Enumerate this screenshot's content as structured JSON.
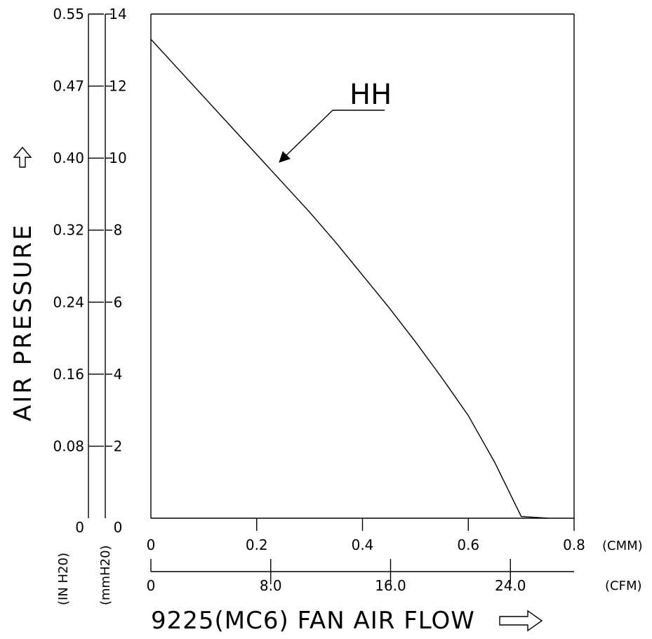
{
  "chart_data": {
    "type": "line",
    "title": "",
    "ylabel": "AIR PRESSURE",
    "xlabel": "9225(MC6) FAN AIR FLOW",
    "y_axis_mmH2O": {
      "unit": "(mmH20)",
      "range": [
        0,
        14
      ],
      "ticks": [
        "0",
        "2",
        "4",
        "6",
        "8",
        "10",
        "12",
        "14"
      ]
    },
    "y_axis_inH2O": {
      "unit": "(IN H20)",
      "ticks": [
        "0",
        "0.08",
        "0.16",
        "0.24",
        "0.32",
        "0.40",
        "0.47",
        "0.55"
      ]
    },
    "x_axis_cmm": {
      "unit": "(CMM)",
      "range": [
        0,
        0.8
      ],
      "ticks": [
        "0",
        "0.2",
        "0.4",
        "0.6",
        "0.8"
      ]
    },
    "x_axis_cfm": {
      "unit": "(CFM)",
      "ticks": [
        "0",
        "8.0",
        "16.0",
        "24.0"
      ]
    },
    "grid": false,
    "series": [
      {
        "name": "HH",
        "x": [
          0,
          0.05,
          0.1,
          0.15,
          0.2,
          0.25,
          0.3,
          0.35,
          0.4,
          0.45,
          0.5,
          0.55,
          0.6,
          0.65,
          0.7,
          0.75
        ],
        "y": [
          13.3,
          12.5,
          11.7,
          10.9,
          10.1,
          9.3,
          8.5,
          7.65,
          6.75,
          5.85,
          4.9,
          3.9,
          2.85,
          1.55,
          0.05,
          0.0
        ]
      }
    ]
  }
}
